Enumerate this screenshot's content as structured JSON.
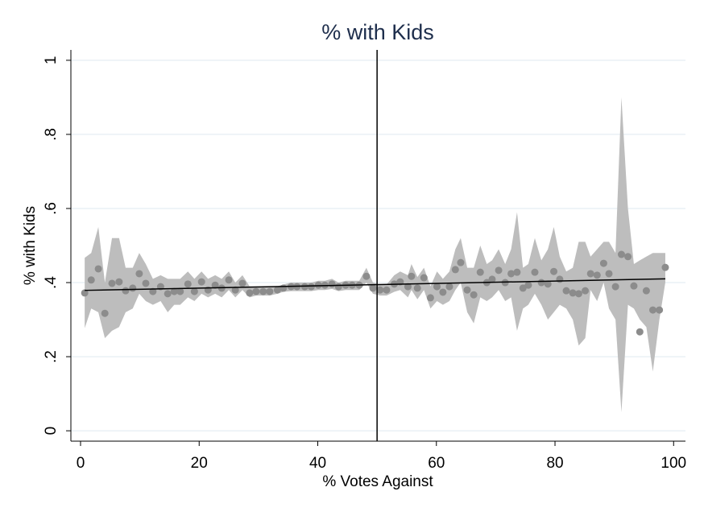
{
  "chart_data": {
    "type": "scatter",
    "title": "% with Kids",
    "xlabel": "% Votes Against",
    "ylabel": "% with Kids",
    "x": [
      0.7,
      1.8,
      3.0,
      4.1,
      5.3,
      6.5,
      7.6,
      8.8,
      9.9,
      11.0,
      12.2,
      13.5,
      14.7,
      15.8,
      16.8,
      18.1,
      19.2,
      20.4,
      21.5,
      22.7,
      23.8,
      25.0,
      26.1,
      27.3,
      28.5,
      29.6,
      30.8,
      31.9,
      33.2,
      34.2,
      35.5,
      36.5,
      37.8,
      38.9,
      40.1,
      41.2,
      42.4,
      43.5,
      44.7,
      45.8,
      47.0,
      48.2,
      49.3,
      50.5,
      51.6,
      52.9,
      53.9,
      55.2,
      55.8,
      56.8,
      57.9,
      59.0,
      60.1,
      61.1,
      62.2,
      63.2,
      64.1,
      65.2,
      66.3,
      67.4,
      68.5,
      69.4,
      70.5,
      71.6,
      72.6,
      73.6,
      74.6,
      75.5,
      76.6,
      77.7,
      78.8,
      79.8,
      80.8,
      81.9,
      83.0,
      84.0,
      85.1,
      86.0,
      87.1,
      88.2,
      89.1,
      90.2,
      91.2,
      92.3,
      93.3,
      94.3,
      95.4,
      96.5,
      97.6,
      98.6
    ],
    "values": [
      0.372,
      0.407,
      0.437,
      0.317,
      0.398,
      0.402,
      0.378,
      0.385,
      0.424,
      0.398,
      0.376,
      0.389,
      0.37,
      0.376,
      0.376,
      0.396,
      0.376,
      0.402,
      0.38,
      0.393,
      0.385,
      0.407,
      0.38,
      0.398,
      0.372,
      0.376,
      0.376,
      0.376,
      0.38,
      0.385,
      0.389,
      0.389,
      0.389,
      0.389,
      0.393,
      0.393,
      0.396,
      0.389,
      0.393,
      0.393,
      0.393,
      0.417,
      0.385,
      0.38,
      0.38,
      0.396,
      0.402,
      0.389,
      0.417,
      0.385,
      0.413,
      0.359,
      0.389,
      0.374,
      0.389,
      0.435,
      0.454,
      0.38,
      0.367,
      0.428,
      0.4,
      0.409,
      0.433,
      0.4,
      0.424,
      0.428,
      0.385,
      0.393,
      0.428,
      0.4,
      0.396,
      0.43,
      0.409,
      0.378,
      0.372,
      0.37,
      0.378,
      0.424,
      0.42,
      0.452,
      0.424,
      0.389,
      0.476,
      0.47,
      0.391,
      0.267,
      0.378,
      0.326,
      0.326,
      0.441
    ],
    "ci_lower": [
      0.277,
      0.33,
      0.32,
      0.25,
      0.27,
      0.28,
      0.32,
      0.33,
      0.37,
      0.35,
      0.34,
      0.35,
      0.32,
      0.34,
      0.34,
      0.36,
      0.35,
      0.37,
      0.36,
      0.37,
      0.36,
      0.38,
      0.36,
      0.38,
      0.36,
      0.365,
      0.365,
      0.365,
      0.37,
      0.375,
      0.377,
      0.377,
      0.377,
      0.377,
      0.38,
      0.38,
      0.383,
      0.377,
      0.38,
      0.38,
      0.38,
      0.4,
      0.37,
      0.365,
      0.365,
      0.375,
      0.38,
      0.36,
      0.38,
      0.355,
      0.38,
      0.33,
      0.35,
      0.34,
      0.35,
      0.38,
      0.4,
      0.32,
      0.29,
      0.36,
      0.35,
      0.36,
      0.38,
      0.35,
      0.36,
      0.27,
      0.33,
      0.34,
      0.37,
      0.34,
      0.3,
      0.32,
      0.34,
      0.33,
      0.3,
      0.23,
      0.25,
      0.38,
      0.35,
      0.4,
      0.33,
      0.3,
      0.05,
      0.34,
      0.33,
      0.3,
      0.28,
      0.16,
      0.3,
      0.4
    ],
    "ci_upper": [
      0.467,
      0.48,
      0.55,
      0.4,
      0.52,
      0.52,
      0.44,
      0.44,
      0.48,
      0.45,
      0.41,
      0.42,
      0.41,
      0.41,
      0.41,
      0.43,
      0.41,
      0.43,
      0.41,
      0.42,
      0.41,
      0.43,
      0.4,
      0.42,
      0.39,
      0.39,
      0.39,
      0.39,
      0.39,
      0.395,
      0.4,
      0.4,
      0.4,
      0.4,
      0.405,
      0.405,
      0.41,
      0.4,
      0.405,
      0.405,
      0.405,
      0.44,
      0.4,
      0.395,
      0.395,
      0.42,
      0.43,
      0.42,
      0.45,
      0.415,
      0.44,
      0.39,
      0.43,
      0.41,
      0.43,
      0.49,
      0.52,
      0.44,
      0.44,
      0.5,
      0.45,
      0.46,
      0.49,
      0.45,
      0.49,
      0.59,
      0.44,
      0.45,
      0.52,
      0.46,
      0.49,
      0.55,
      0.47,
      0.43,
      0.44,
      0.51,
      0.51,
      0.47,
      0.49,
      0.51,
      0.51,
      0.48,
      0.9,
      0.6,
      0.45,
      0.46,
      0.47,
      0.48,
      0.48,
      0.48
    ],
    "fit": {
      "x": [
        0.7,
        98.6
      ],
      "y": [
        0.379,
        0.41
      ]
    },
    "xline": 50,
    "point_color": "#8c8c8c",
    "band_color": "#bdbdbd",
    "line_color": "#000000",
    "xlim": [
      -1.63,
      102
    ],
    "ylim": [
      -0.028,
      1.028
    ],
    "xticks": [
      0,
      20,
      40,
      60,
      80,
      100
    ],
    "yticks": [
      0,
      {
        "value": 0.2,
        "label": ".2"
      },
      {
        "value": 0.4,
        "label": ".4"
      },
      {
        "value": 0.6,
        "label": ".6"
      },
      {
        "value": 0.8,
        "label": ".8"
      },
      1
    ],
    "grid": true
  }
}
